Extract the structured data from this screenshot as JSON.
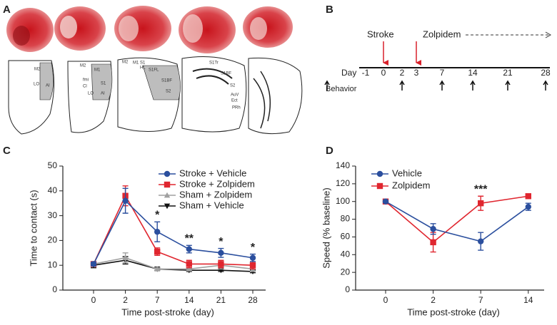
{
  "panel_labels": [
    "A",
    "B",
    "C",
    "D"
  ],
  "atlas_labels": [
    [
      "M2",
      "LO",
      "AI"
    ],
    [
      "M2",
      "M1",
      "fmi",
      "Cl",
      "S1",
      "LO",
      "AI"
    ],
    [
      "M2",
      "M1",
      "S1",
      "HL",
      "S1FL",
      "S1BF",
      "S2"
    ],
    [
      "S1Tr",
      "S1BF",
      "S2",
      "AuV",
      "Ect",
      "PRh"
    ]
  ],
  "timeline": {
    "events": [
      "Stroke",
      "Zolpidem"
    ],
    "day_label": "Day",
    "days": [
      -1,
      0,
      2,
      3,
      7,
      14,
      21,
      28
    ],
    "behavior_label": "Behavior"
  },
  "chart_data": [
    {
      "type": "line",
      "y_label": "Time to contact (s)",
      "x_label": "Time post-stroke (day)",
      "categories": [
        "0",
        "2",
        "7",
        "14",
        "21",
        "28"
      ],
      "ylim": [
        0,
        50
      ],
      "yticks": [
        0,
        10,
        20,
        30,
        40,
        50
      ],
      "legend": "upper right",
      "series": [
        {
          "name": "Stroke + Vehicle",
          "color": "#2b4f9e",
          "marker": "circle",
          "values": [
            10.5,
            36,
            23.5,
            16.5,
            15,
            13
          ],
          "errors": [
            0.8,
            5,
            4,
            1.5,
            1.8,
            1.5
          ]
        },
        {
          "name": "Stroke + Zolpidem",
          "color": "#e0262f",
          "marker": "square",
          "values": [
            10.5,
            38,
            15.5,
            10.5,
            10.5,
            10
          ],
          "errors": [
            0.5,
            4,
            1.5,
            1.5,
            1.5,
            1.5
          ]
        },
        {
          "name": "Sham + Zolpidem",
          "color": "#a0a0a0",
          "marker": "triangle-up",
          "values": [
            10.5,
            13,
            8.5,
            8.5,
            10,
            8.5
          ],
          "errors": [
            0.5,
            2,
            0.5,
            0.5,
            1.5,
            1
          ]
        },
        {
          "name": "Sham + Vehicle",
          "color": "#111111",
          "marker": "triangle-down",
          "values": [
            10,
            12,
            8.5,
            8,
            8,
            7.5
          ],
          "errors": [
            1,
            1.5,
            0.5,
            0.5,
            0.5,
            0.5
          ]
        }
      ],
      "annotations": [
        {
          "text": "*",
          "x": "7"
        },
        {
          "text": "**",
          "x": "14"
        },
        {
          "text": "*",
          "x": "21"
        },
        {
          "text": "*",
          "x": "28"
        }
      ]
    },
    {
      "type": "line",
      "y_label": "Speed (% baseline)",
      "x_label": "Time post-stroke (day)",
      "categories": [
        "0",
        "2",
        "7",
        "14"
      ],
      "ylim": [
        0,
        140
      ],
      "yticks": [
        0,
        20,
        40,
        60,
        80,
        100,
        120,
        140
      ],
      "legend": "upper left",
      "series": [
        {
          "name": "Vehicle",
          "color": "#2b4f9e",
          "marker": "circle",
          "values": [
            100,
            69,
            55,
            94
          ],
          "errors": [
            1,
            6,
            10,
            4
          ]
        },
        {
          "name": "Zolpidem",
          "color": "#e0262f",
          "marker": "square",
          "values": [
            100,
            54,
            98,
            106
          ],
          "errors": [
            1,
            11,
            8,
            1.5
          ]
        }
      ],
      "annotations": [
        {
          "text": "***",
          "x": "7"
        }
      ]
    }
  ]
}
